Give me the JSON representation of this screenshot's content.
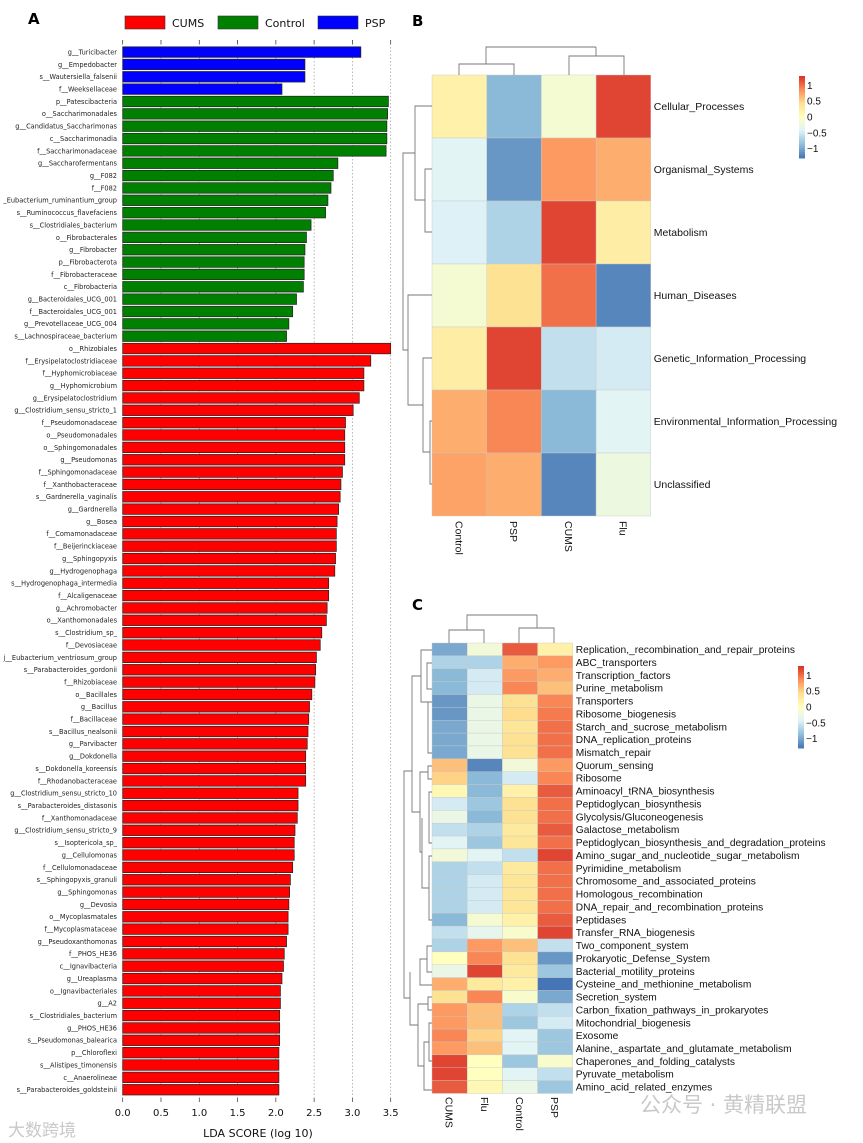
{
  "chart_data": [
    {
      "type": "bar",
      "orientation": "horizontal",
      "panel": "A",
      "xlabel": "LDA SCORE (log 10)",
      "xlim": [
        0,
        3.5
      ],
      "xticks": [
        "0.0",
        "0.5",
        "1.0",
        "1.5",
        "2.0",
        "2.5",
        "3.0",
        "3.5"
      ],
      "grid": "vertical dotted",
      "legend": [
        {
          "name": "CUMS",
          "color": "#ff0000"
        },
        {
          "name": "Control",
          "color": "#008000"
        },
        {
          "name": "PSP",
          "color": "#0000ff"
        }
      ],
      "legend_position": "top",
      "bars": [
        {
          "label": "g__Turicibacter",
          "group": "PSP",
          "value": 3.11
        },
        {
          "label": "g__Empedobacter",
          "group": "PSP",
          "value": 2.38
        },
        {
          "label": "s__Wautersiella_falsenii",
          "group": "PSP",
          "value": 2.38
        },
        {
          "label": "f__Weeksellaceae",
          "group": "PSP",
          "value": 2.08
        },
        {
          "label": "p__Patescibacteria",
          "group": "Control",
          "value": 3.47
        },
        {
          "label": "o__Saccharimonadales",
          "group": "Control",
          "value": 3.46
        },
        {
          "label": "g__Candidatus_Saccharimonas",
          "group": "Control",
          "value": 3.45
        },
        {
          "label": "c__Saccharimonadia",
          "group": "Control",
          "value": 3.45
        },
        {
          "label": "f__Saccharimonadaceae",
          "group": "Control",
          "value": 3.44
        },
        {
          "label": "g__Saccharofermentans",
          "group": "Control",
          "value": 2.81
        },
        {
          "label": "g__F082",
          "group": "Control",
          "value": 2.75
        },
        {
          "label": "f__F082",
          "group": "Control",
          "value": 2.72
        },
        {
          "label": "_Eubacterium_ruminantium_group",
          "group": "Control",
          "value": 2.68
        },
        {
          "label": "s__Ruminococcus_flavefaciens",
          "group": "Control",
          "value": 2.65
        },
        {
          "label": "s__Clostridiales_bacterium",
          "group": "Control",
          "value": 2.46
        },
        {
          "label": "o__Fibrobacterales",
          "group": "Control",
          "value": 2.4
        },
        {
          "label": "g__Fibrobacter",
          "group": "Control",
          "value": 2.38
        },
        {
          "label": "p__Fibrobacterota",
          "group": "Control",
          "value": 2.37
        },
        {
          "label": "f__Fibrobacteraceae",
          "group": "Control",
          "value": 2.37
        },
        {
          "label": "c__Fibrobacteria",
          "group": "Control",
          "value": 2.36
        },
        {
          "label": "g__Bacteroidales_UCG_001",
          "group": "Control",
          "value": 2.27
        },
        {
          "label": "f__Bacteroidales_UCG_001",
          "group": "Control",
          "value": 2.22
        },
        {
          "label": "g__Prevotellaceae_UCG_004",
          "group": "Control",
          "value": 2.17
        },
        {
          "label": "s__Lachnospiraceae_bacterium",
          "group": "Control",
          "value": 2.14
        },
        {
          "label": "o__Rhizobiales",
          "group": "CUMS",
          "value": 3.5
        },
        {
          "label": "f__Erysipelatoclostridiaceae",
          "group": "CUMS",
          "value": 3.24
        },
        {
          "label": "f__Hyphomicrobiaceae",
          "group": "CUMS",
          "value": 3.15
        },
        {
          "label": "g__Hyphomicrobium",
          "group": "CUMS",
          "value": 3.15
        },
        {
          "label": "g__Erysipelatoclostridium",
          "group": "CUMS",
          "value": 3.09
        },
        {
          "label": "g__Clostridium_sensu_stricto_1",
          "group": "CUMS",
          "value": 3.01
        },
        {
          "label": "f__Pseudomonadaceae",
          "group": "CUMS",
          "value": 2.91
        },
        {
          "label": "o__Pseudomonadales",
          "group": "CUMS",
          "value": 2.9
        },
        {
          "label": "o__Sphingomonadales",
          "group": "CUMS",
          "value": 2.9
        },
        {
          "label": "g__Pseudomonas",
          "group": "CUMS",
          "value": 2.9
        },
        {
          "label": "f__Sphingomonadaceae",
          "group": "CUMS",
          "value": 2.87
        },
        {
          "label": "f__Xanthobacteraceae",
          "group": "CUMS",
          "value": 2.85
        },
        {
          "label": "s__Gardnerella_vaginalis",
          "group": "CUMS",
          "value": 2.84
        },
        {
          "label": "g__Gardnerella",
          "group": "CUMS",
          "value": 2.82
        },
        {
          "label": "g__Bosea",
          "group": "CUMS",
          "value": 2.8
        },
        {
          "label": "f__Comamonadaceae",
          "group": "CUMS",
          "value": 2.79
        },
        {
          "label": "f__Beijerinckiaceae",
          "group": "CUMS",
          "value": 2.79
        },
        {
          "label": "g__Sphingopyxis",
          "group": "CUMS",
          "value": 2.78
        },
        {
          "label": "g__Hydrogenophaga",
          "group": "CUMS",
          "value": 2.77
        },
        {
          "label": "s__Hydrogenophaga_intermedia",
          "group": "CUMS",
          "value": 2.69
        },
        {
          "label": "f__Alcaligenaceae",
          "group": "CUMS",
          "value": 2.69
        },
        {
          "label": "g__Achromobacter",
          "group": "CUMS",
          "value": 2.67
        },
        {
          "label": "o__Xanthomonadales",
          "group": "CUMS",
          "value": 2.66
        },
        {
          "label": "s__Clostridium_sp_",
          "group": "CUMS",
          "value": 2.6
        },
        {
          "label": "f__Devosiaceae",
          "group": "CUMS",
          "value": 2.58
        },
        {
          "label": "j__Eubacterium_ventriosum_group",
          "group": "CUMS",
          "value": 2.53
        },
        {
          "label": "s__Parabacteroides_gordonii",
          "group": "CUMS",
          "value": 2.52
        },
        {
          "label": "f__Rhizobiaceae",
          "group": "CUMS",
          "value": 2.51
        },
        {
          "label": "o__Bacillales",
          "group": "CUMS",
          "value": 2.47
        },
        {
          "label": "g__Bacillus",
          "group": "CUMS",
          "value": 2.44
        },
        {
          "label": "f__Bacillaceae",
          "group": "CUMS",
          "value": 2.43
        },
        {
          "label": "s__Bacillus_nealsonii",
          "group": "CUMS",
          "value": 2.42
        },
        {
          "label": "g__Parvibacter",
          "group": "CUMS",
          "value": 2.41
        },
        {
          "label": "g__Dokdonella",
          "group": "CUMS",
          "value": 2.39
        },
        {
          "label": "s__Dokdonella_koreensis",
          "group": "CUMS",
          "value": 2.39
        },
        {
          "label": "f__Rhodanobacteraceae",
          "group": "CUMS",
          "value": 2.39
        },
        {
          "label": "g__Clostridium_sensu_stricto_10",
          "group": "CUMS",
          "value": 2.29
        },
        {
          "label": "s__Parabacteroides_distasonis",
          "group": "CUMS",
          "value": 2.29
        },
        {
          "label": "f__Xanthomonadaceae",
          "group": "CUMS",
          "value": 2.28
        },
        {
          "label": "g__Clostridium_sensu_stricto_9",
          "group": "CUMS",
          "value": 2.25
        },
        {
          "label": "s__Isoptericola_sp_",
          "group": "CUMS",
          "value": 2.24
        },
        {
          "label": "g__Cellulomonas",
          "group": "CUMS",
          "value": 2.24
        },
        {
          "label": "f__Cellulomonadaceae",
          "group": "CUMS",
          "value": 2.22
        },
        {
          "label": "s__Sphingopyxis_granuli",
          "group": "CUMS",
          "value": 2.19
        },
        {
          "label": "g__Sphingomonas",
          "group": "CUMS",
          "value": 2.18
        },
        {
          "label": "g__Devosia",
          "group": "CUMS",
          "value": 2.17
        },
        {
          "label": "o__Mycoplasmatales",
          "group": "CUMS",
          "value": 2.16
        },
        {
          "label": "f__Mycoplasmataceae",
          "group": "CUMS",
          "value": 2.16
        },
        {
          "label": "g__Pseudoxanthomonas",
          "group": "CUMS",
          "value": 2.14
        },
        {
          "label": "f__PHOS_HE36",
          "group": "CUMS",
          "value": 2.11
        },
        {
          "label": "c__Ignavibacteria",
          "group": "CUMS",
          "value": 2.1
        },
        {
          "label": "g__Ureaplasma",
          "group": "CUMS",
          "value": 2.08
        },
        {
          "label": "o__Ignavibacteriales",
          "group": "CUMS",
          "value": 2.06
        },
        {
          "label": "g__A2",
          "group": "CUMS",
          "value": 2.06
        },
        {
          "label": "s__Clostridiales_bacterium",
          "group": "CUMS",
          "value": 2.05
        },
        {
          "label": "g__PHOS_HE36",
          "group": "CUMS",
          "value": 2.05
        },
        {
          "label": "s__Pseudomonas_balearica",
          "group": "CUMS",
          "value": 2.05
        },
        {
          "label": "p__Chloroflexi",
          "group": "CUMS",
          "value": 2.04
        },
        {
          "label": "s__Alistipes_timonensis",
          "group": "CUMS",
          "value": 2.04
        },
        {
          "label": "c__Anaerolineae",
          "group": "CUMS",
          "value": 2.04
        },
        {
          "label": "s__Parabacteroides_goldsteinii",
          "group": "CUMS",
          "value": 2.04
        }
      ]
    },
    {
      "type": "heatmap",
      "panel": "B",
      "columns": [
        "Control",
        "PSP",
        "CUMS",
        "Flu"
      ],
      "rows": [
        "Cellular_Processes",
        "Organismal_Systems",
        "Metabolism",
        "Human_Diseases",
        "Genetic_Information_Processing",
        "Environmental_Information_Processing",
        "Unclassified"
      ],
      "values": [
        [
          0.2,
          -0.9,
          -0.15,
          1.2
        ],
        [
          -0.4,
          -1.1,
          0.8,
          0.7
        ],
        [
          -0.45,
          -0.7,
          1.2,
          0.25
        ],
        [
          -0.15,
          0.4,
          1.0,
          -1.2
        ],
        [
          0.25,
          1.2,
          -0.6,
          -0.5
        ],
        [
          0.7,
          0.9,
          -0.9,
          -0.4
        ],
        [
          0.75,
          0.7,
          -1.2,
          -0.25
        ]
      ],
      "colorbar_ticks": [
        "1",
        "0.5",
        "0",
        "−0.5",
        "−1"
      ],
      "colorbar_range": [
        -1.3,
        1.3
      ]
    },
    {
      "type": "heatmap",
      "panel": "C",
      "columns": [
        "CUMS",
        "Flu",
        "Control",
        "PSP"
      ],
      "rows": [
        "Replication,_recombination_and_repair_proteins",
        "ABC_transporters",
        "Transcription_factors",
        "Purine_metabolism",
        "Transporters",
        "Ribosome_biogenesis",
        "Starch_and_sucrose_metabolism",
        "DNA_replication_proteins",
        "Mismatch_repair",
        "Quorum_sensing",
        "Ribosome",
        "Aminoacyl_tRNA_biosynthesis",
        "Peptidoglycan_biosynthesis",
        "Glycolysis/Gluconeogenesis",
        "Galactose_metabolism",
        "Peptidoglycan_biosynthesis_and_degradation_proteins",
        "Amino_sugar_and_nucleotide_sugar_metabolism",
        "Pyrimidine_metabolism",
        "Chromosome_and_associated_proteins",
        "Homologous_recombination",
        "DNA_repair_and_recombination_proteins",
        "Peptidases",
        "Transfer_RNA_biogenesis",
        "Two_component_system",
        "Prokaryotic_Defense_System",
        "Bacterial_motility_proteins",
        "Cysteine_and_methionine_metabolism",
        "Secretion_system",
        "Carbon_fixation_pathways_in_prokaryotes",
        "Mitochondrial_biogenesis",
        "Exosome",
        "Alanine,_aspartate_and_glutamate_metabolism",
        "Chaperones_and_folding_catalysts",
        "Pyruvate_metabolism",
        "Amino_acid_related_enzymes"
      ],
      "values": [
        [
          -1.0,
          -0.2,
          1.1,
          0.2
        ],
        [
          -0.7,
          -0.7,
          0.7,
          0.8
        ],
        [
          -0.9,
          -0.5,
          0.8,
          0.7
        ],
        [
          -0.9,
          -0.5,
          0.9,
          0.6
        ],
        [
          -1.1,
          -0.3,
          0.4,
          0.9
        ],
        [
          -1.1,
          -0.3,
          0.45,
          0.95
        ],
        [
          -1.0,
          -0.3,
          0.35,
          1.0
        ],
        [
          -1.0,
          -0.3,
          0.4,
          1.0
        ],
        [
          -1.0,
          -0.3,
          0.4,
          1.0
        ],
        [
          0.6,
          -1.2,
          -0.2,
          0.8
        ],
        [
          0.5,
          -0.9,
          -0.5,
          0.9
        ],
        [
          0.1,
          -0.9,
          0.2,
          1.1
        ],
        [
          -0.5,
          -0.8,
          0.4,
          1.0
        ],
        [
          -0.3,
          -0.9,
          0.4,
          1.0
        ],
        [
          -0.6,
          -0.7,
          0.3,
          1.1
        ],
        [
          -0.4,
          -0.8,
          0.35,
          1.0
        ],
        [
          -0.2,
          -0.4,
          -0.6,
          1.2
        ],
        [
          -0.7,
          -0.6,
          0.3,
          1.0
        ],
        [
          -0.7,
          -0.5,
          0.35,
          1.0
        ],
        [
          -0.7,
          -0.5,
          0.35,
          1.0
        ],
        [
          -0.7,
          -0.5,
          0.35,
          1.0
        ],
        [
          -0.9,
          -0.15,
          0.2,
          1.1
        ],
        [
          -0.6,
          -0.35,
          -0.1,
          1.2
        ],
        [
          -0.7,
          0.8,
          0.6,
          -0.6
        ],
        [
          0.0,
          0.9,
          0.4,
          -1.1
        ],
        [
          -0.3,
          1.2,
          0.3,
          -0.8
        ],
        [
          0.7,
          0.3,
          0.2,
          -1.3
        ],
        [
          0.4,
          0.9,
          -0.1,
          -1.0
        ],
        [
          0.8,
          0.6,
          -0.7,
          -0.6
        ],
        [
          0.8,
          0.6,
          -0.8,
          -0.5
        ],
        [
          0.9,
          0.5,
          -0.4,
          -0.8
        ],
        [
          0.8,
          0.6,
          -0.4,
          -0.8
        ],
        [
          1.2,
          0.0,
          -0.8,
          -0.1
        ],
        [
          1.2,
          0.0,
          -0.4,
          -0.6
        ],
        [
          1.1,
          0.1,
          -0.3,
          -0.8
        ]
      ],
      "colorbar_ticks": [
        "1",
        "0.5",
        "0",
        "−0.5",
        "−1"
      ],
      "colorbar_range": [
        -1.3,
        1.3
      ]
    }
  ],
  "panels": {
    "a": "A",
    "b": "B",
    "c": "C"
  },
  "palette": [
    "#4575b4",
    "#91bfdb",
    "#e0f3f8",
    "#ffffbf",
    "#fee090",
    "#fc8d59",
    "#d73027"
  ],
  "watermarks": {
    "left": "大数跨境",
    "right": "公众号 · 黄精联盟"
  }
}
